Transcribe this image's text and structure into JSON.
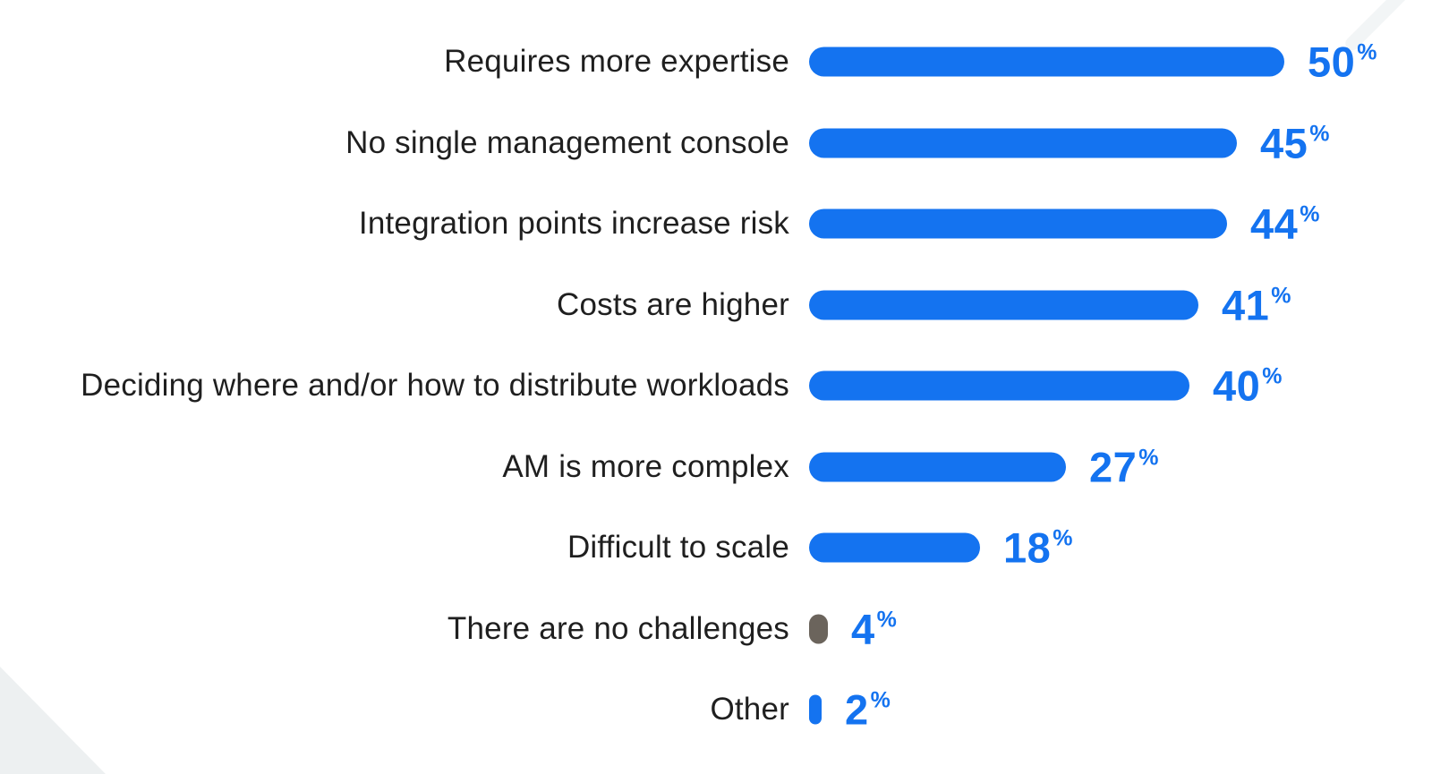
{
  "page": {
    "background": "#ffffff"
  },
  "colors": {
    "bar_primary": "#1473f0",
    "bar_muted": "#6b645c",
    "value_text": "#1473f0",
    "category_text": "#1f1f1f",
    "corner_triangle": "#edf0f1",
    "top_right_streak": "#f2f5f6"
  },
  "chart_data": {
    "type": "bar",
    "orientation": "horizontal",
    "categories": [
      "Requires more expertise",
      "No single management console",
      "Integration points increase risk",
      "Costs are higher",
      "Deciding where and/or how to distribute workloads",
      "AM is more complex",
      "Difficult to scale",
      "There are no challenges",
      "Other"
    ],
    "values": [
      50,
      45,
      44,
      41,
      40,
      27,
      18,
      4,
      2
    ],
    "value_suffix": "%",
    "xlim": [
      0,
      50
    ],
    "grid": false,
    "legend": false,
    "value_label_position": "right-of-bar",
    "bar_colors": [
      "#1473f0",
      "#1473f0",
      "#1473f0",
      "#1473f0",
      "#1473f0",
      "#1473f0",
      "#1473f0",
      "#6b645c",
      "#1473f0"
    ]
  }
}
